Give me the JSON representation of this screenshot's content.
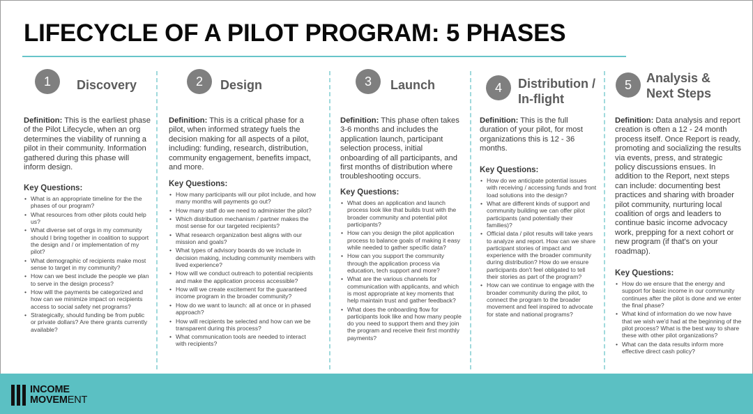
{
  "title": "LIFECYCLE OF A PILOT PROGRAM: 5 PHASES",
  "colors": {
    "accent": "#67c5c9",
    "footer": "#5bc0c3",
    "circle": "#7f7f7f"
  },
  "phases": [
    {
      "number": "1",
      "name": "Discovery",
      "definition_label": "Definition:",
      "definition": " This is the earliest phase of the Pilot Lifecycle, when an org determines the viability of running a pilot in their community. Information gathered during this phase will inform design.",
      "kq_label": "Key Questions:",
      "questions": [
        "What is an appropriate timeline for the the phases of our program?",
        "What resources from other pilots could help us?",
        "What diverse set of orgs in my community should I bring together in coalition to support the design and / or implementation of my pilot?",
        "What demographic of recipients make most sense to target in my community?",
        "How can we best include the people we plan to serve in the design process?",
        "How will the payments be categorized and how can we minimize impact on recipients access to social safety net programs?",
        "Strategically, should funding be from public or private dollars? Are there grants currently available?"
      ]
    },
    {
      "number": "2",
      "name": "Design",
      "definition_label": "Definition:",
      "definition": " This is a critical phase for a pilot, when informed strategy fuels the decision making for all aspects of a pilot, including: funding, research, distribution, community engagement, benefits impact, and more.",
      "kq_label": "Key Questions:",
      "questions": [
        "How many participants will our pilot include, and how many months will payments go out?",
        "How many staff do we need to administer the pilot?",
        "Which distribution mechanism / partner makes the most sense for our targeted recipients?",
        "What research organization best aligns with our mission and goals?",
        "What types of advisory boards do we include in decision making, including community members with lived experience?",
        "How will we conduct outreach to potential recipients and make the application process accessible?",
        "How will we create excitement for the guaranteed income program in the broader community?",
        "How do we want to launch: all at once or in phased approach?",
        "How will recipients be selected and how can we be transparent during this process?",
        "What communication tools are needed to interact with recipients?"
      ]
    },
    {
      "number": "3",
      "name": "Launch",
      "definition_label": "Definition:",
      "definition": " This phase often takes 3-6 months and includes the application launch, participant selection process, initial onboarding of all participants, and first months of distribution where troubleshooting occurs.",
      "kq_label": "Key Questions:",
      "questions": [
        "What does an application and launch process look like that builds trust with the broader community and potential pilot participants?",
        "How can you design the pilot application process to balance goals of making it easy while needed to gather specific data?",
        "How can you support the community through the application process via education, tech support and more?",
        "What are the various channels for communication with applicants, and which is most appropriate at key moments that help maintain trust and gather feedback?",
        "What does the onboarding flow for participants look like and how many people do you need to support them and they join the program and receive their first monthly payments?"
      ]
    },
    {
      "number": "4",
      "name_line1": "Distribution /",
      "name_line2": "In-flight",
      "definition_label": "Definition:",
      "definition": " This is the full duration of your pilot, for most organizations this is 12 - 36 months.",
      "kq_label": "Key Questions:",
      "questions": [
        "How do we anticipate potential issues with receiving / accessing funds and front load solutions into the design?",
        "What are different kinds of support and community building we can offer pilot participants (and potentially their families)?",
        "Official data / pilot results will take years to analyze and report. How can we share participant stories of impact and experience with the broader community during distribution? How do we ensure participants don't feel obligated to tell their stories as part of the program?",
        "How can we continue to engage with the broader community during the pilot, to connect the program to the broader movement and feel inspired to advocate for state and national programs?"
      ]
    },
    {
      "number": "5",
      "name_line1": "Analysis &",
      "name_line2": "Next Steps",
      "definition_label": "Definition:",
      "definition": " Data analysis and report creation is often a 12 - 24 month process itself. Once Report is ready, promoting and socializing the results via events, press, and strategic policy discussions ensues. In addition to the Report, next steps can include: documenting best practices and sharing with broader pilot community, nurturing local coalition of orgs and leaders to continue basic income advocacy work, prepping for a next cohort or new program (if that's on your roadmap).",
      "kq_label": "Key Questions:",
      "questions": [
        "How do we ensure that the energy and support for basic income in our community continues after the pilot is done and we enter the final phase?",
        "What kind of information do we now have that we wish we'd had at the beginning of the pilot process? What is the best way to share these with other pilot organizations?",
        "What can the data results inform more effective direct cash policy?"
      ]
    }
  ],
  "logo": {
    "line1": "INCOME",
    "line2_bold": "MOVEM",
    "line2_light": "ENT"
  }
}
